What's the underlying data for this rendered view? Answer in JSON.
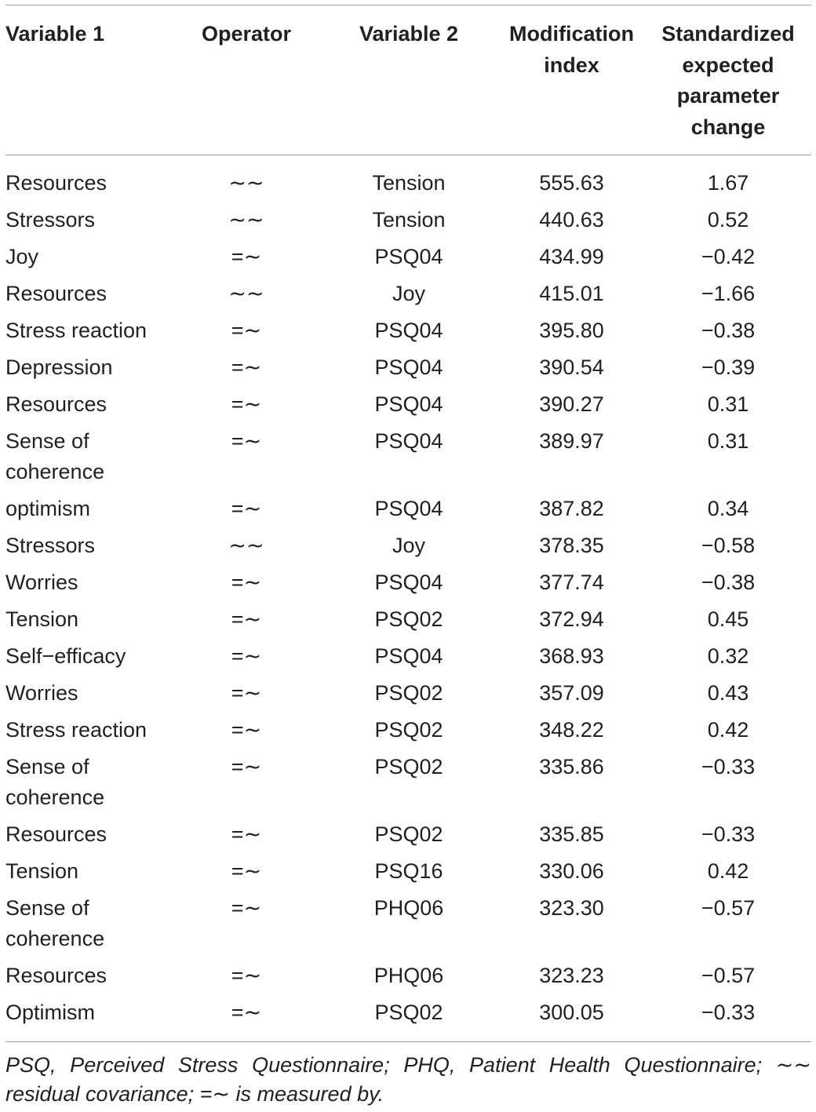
{
  "table": {
    "headers": [
      "Variable 1",
      "Operator",
      "Variable 2",
      "Modification index",
      "Standardized expected parameter change"
    ],
    "rows": [
      [
        "Resources",
        "∼∼",
        "Tension",
        "555.63",
        "1.67"
      ],
      [
        "Stressors",
        "∼∼",
        "Tension",
        "440.63",
        "0.52"
      ],
      [
        "Joy",
        "=∼",
        "PSQ04",
        "434.99",
        "−0.42"
      ],
      [
        "Resources",
        "∼∼",
        "Joy",
        "415.01",
        "−1.66"
      ],
      [
        "Stress reaction",
        "=∼",
        "PSQ04",
        "395.80",
        "−0.38"
      ],
      [
        "Depression",
        "=∼",
        "PSQ04",
        "390.54",
        "−0.39"
      ],
      [
        "Resources",
        "=∼",
        "PSQ04",
        "390.27",
        "0.31"
      ],
      [
        "Sense of coherence",
        "=∼",
        "PSQ04",
        "389.97",
        "0.31"
      ],
      [
        "optimism",
        "=∼",
        "PSQ04",
        "387.82",
        "0.34"
      ],
      [
        "Stressors",
        "∼∼",
        "Joy",
        "378.35",
        "−0.58"
      ],
      [
        "Worries",
        "=∼",
        "PSQ04",
        "377.74",
        "−0.38"
      ],
      [
        "Tension",
        "=∼",
        "PSQ02",
        "372.94",
        "0.45"
      ],
      [
        "Self−efficacy",
        "=∼",
        "PSQ04",
        "368.93",
        "0.32"
      ],
      [
        "Worries",
        "=∼",
        "PSQ02",
        "357.09",
        "0.43"
      ],
      [
        "Stress reaction",
        "=∼",
        "PSQ02",
        "348.22",
        "0.42"
      ],
      [
        "Sense of coherence",
        "=∼",
        "PSQ02",
        "335.86",
        "−0.33"
      ],
      [
        "Resources",
        "=∼",
        "PSQ02",
        "335.85",
        "−0.33"
      ],
      [
        "Tension",
        "=∼",
        "PSQ16",
        "330.06",
        "0.42"
      ],
      [
        "Sense of coherence",
        "=∼",
        "PHQ06",
        "323.30",
        "−0.57"
      ],
      [
        "Resources",
        "=∼",
        "PHQ06",
        "323.23",
        "−0.57"
      ],
      [
        "Optimism",
        "=∼",
        "PSQ02",
        "300.05",
        "−0.33"
      ]
    ]
  },
  "footnote": "PSQ, Perceived Stress Questionnaire; PHQ, Patient Health Questionnaire; ∼∼ residual covariance; =∼ is measured by."
}
